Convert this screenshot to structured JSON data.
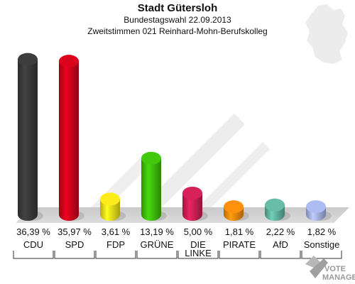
{
  "header": {
    "title": "Stadt Gütersloh",
    "subtitle1": "Bundestagswahl 22.09.2013",
    "subtitle2": "Zweitstimmen 021 Reinhard-Mohn-Berufskolleg"
  },
  "logo": {
    "line1": "VOTE",
    "line2": "MANAGER",
    "icon": "check-mark-icon"
  },
  "map_icon": "germany-map-icon",
  "chart_data": {
    "type": "bar",
    "title": "",
    "xlabel": "",
    "ylabel": "",
    "ylim": [
      0,
      40
    ],
    "categories": [
      "CDU",
      "SPD",
      "FDP",
      "GRÜNE",
      "DIE LINKE",
      "PIRATE",
      "AfD",
      "Sonstige"
    ],
    "values": [
      36.39,
      35.97,
      3.61,
      13.19,
      5.0,
      1.81,
      2.22,
      1.82
    ],
    "value_labels": [
      "36,39 %",
      "35,97 %",
      "3,61 %",
      "13,19 %",
      "5,00 %",
      "1,81 %",
      "2,22 %",
      "1,82 %"
    ],
    "colors": [
      "#3a3a3a",
      "#d0021b",
      "#f2e21a",
      "#3fbf0b",
      "#cc1f55",
      "#f58a0c",
      "#62b4a0",
      "#a6b3e8"
    ]
  }
}
